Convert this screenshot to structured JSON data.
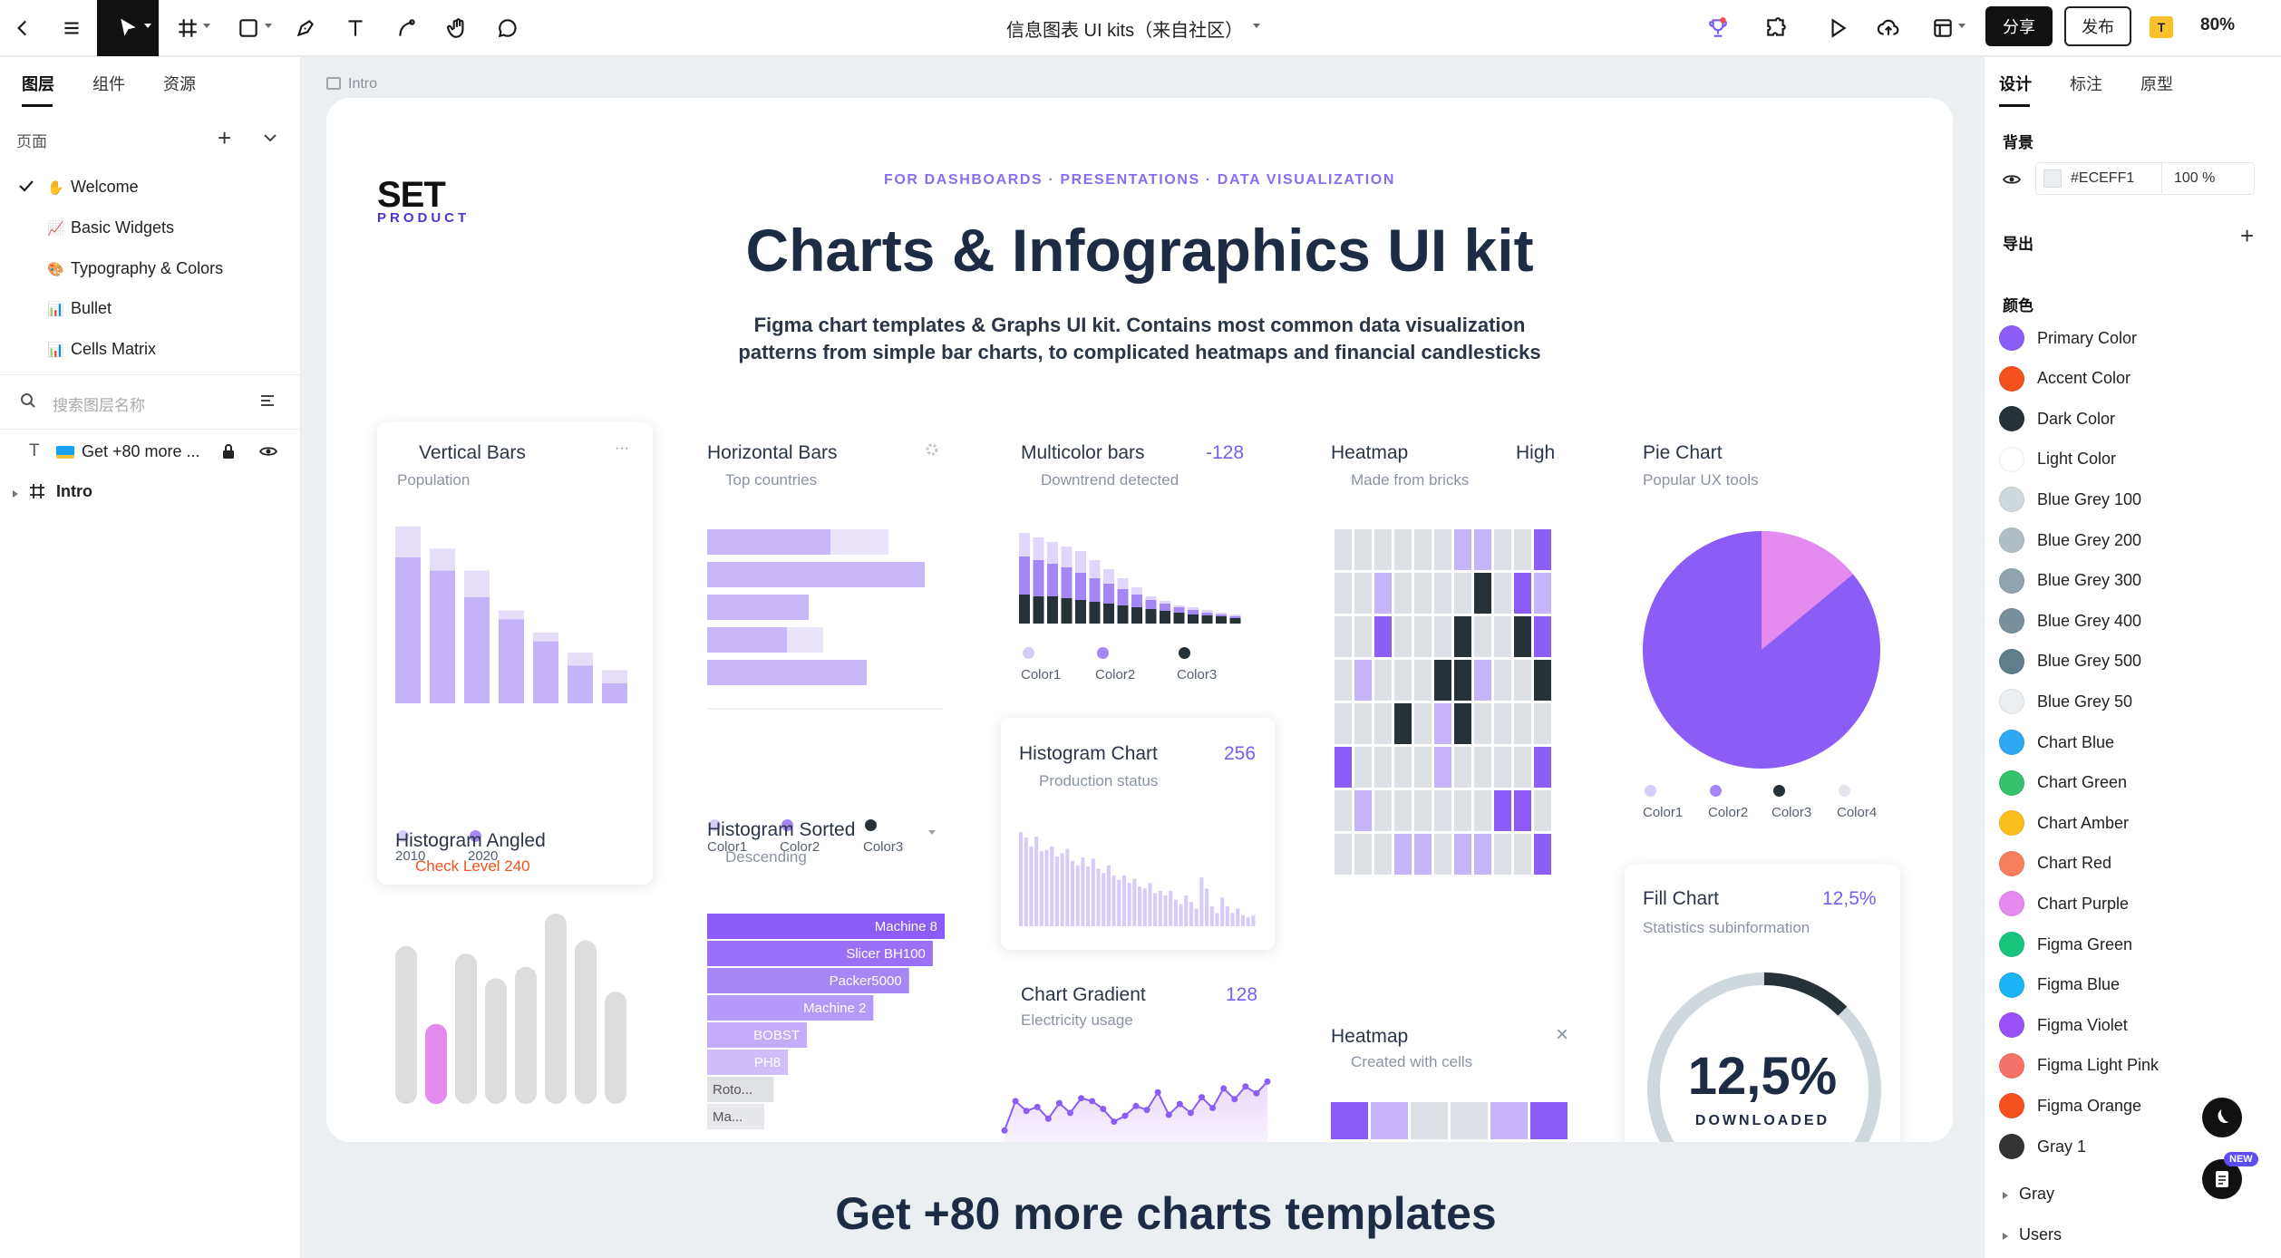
{
  "toolbar": {
    "title": "信息图表 UI kits（来自社区）",
    "share": "分享",
    "publish": "发布",
    "plugin_badge": "T",
    "zoom": "80%"
  },
  "left": {
    "tabs": [
      "图层",
      "组件",
      "资源"
    ],
    "pages_label": "页面",
    "pages": [
      {
        "emoji": "✋",
        "label": "Welcome",
        "active": true
      },
      {
        "emoji": "📈",
        "label": "Basic Widgets"
      },
      {
        "emoji": "🎨",
        "label": "Typography & Colors"
      },
      {
        "emoji": "📊",
        "label": "Bullet"
      },
      {
        "emoji": "📊",
        "label": "Cells Matrix"
      }
    ],
    "search_placeholder": "搜索图层名称",
    "layers": [
      {
        "label": "Get +80 more ..."
      },
      {
        "label": "Intro"
      }
    ]
  },
  "canvas": {
    "frame_label": "Intro",
    "logo_top": "SET",
    "logo_bottom": "PRODUCT",
    "kicker": "FOR DASHBOARDS · PRESENTATIONS · DATA VISUALIZATION",
    "headline": "Charts & Infographics UI kit",
    "sub1": "Figma chart templates & Graphs UI kit. Contains most common data visualization",
    "sub2": "patterns from simple bar charts, to complicated heatmaps and financial candlesticks",
    "cta": "Get +80 more charts templates"
  },
  "colors": {
    "accent": "#8B5CF6"
  },
  "cards": {
    "vbars": {
      "title": "Vertical Bars",
      "sub": "Population",
      "more": "···",
      "leg": [
        "2010",
        "2020"
      ]
    },
    "hbars": {
      "title": "Horizontal Bars",
      "sub": "Top countries",
      "leg": [
        "Color1",
        "Color2",
        "Color3"
      ]
    },
    "multi": {
      "title": "Multicolor bars",
      "value": "-128",
      "sub": "Downtrend detected",
      "leg": [
        "Color1",
        "Color2",
        "Color3"
      ]
    },
    "heat1": {
      "title": "Heatmap",
      "value": "High",
      "sub": "Made from bricks"
    },
    "pie": {
      "title": "Pie Chart",
      "sub": "Popular UX tools",
      "leg": [
        "Color1",
        "Color2",
        "Color3",
        "Color4"
      ]
    },
    "hangled": {
      "title": "Histogram Angled",
      "sub": "Check Level 240"
    },
    "hsorted": {
      "title": "Histogram Sorted",
      "sub": "Descending",
      "labels": [
        "Machine 8",
        "Slicer BH100",
        "Packer5000",
        "Machine 2",
        "BOBST",
        "PH8",
        "Roto...",
        "Ma..."
      ]
    },
    "histo": {
      "title": "Histogram Chart",
      "value": "256",
      "sub": "Production status"
    },
    "grad": {
      "title": "Chart Gradient",
      "value": "128",
      "sub": "Electricity usage"
    },
    "heat2": {
      "title": "Heatmap",
      "sub": "Created with cells",
      "close": "×"
    },
    "fill": {
      "title": "Fill Chart",
      "value": "12,5%",
      "sub": "Statistics subinformation",
      "big": "12,5%",
      "caption": "DOWNLOADED"
    }
  },
  "chart_data": [
    {
      "type": "bar",
      "title": "Vertical Bars",
      "series": [
        {
          "name": "2010",
          "values": [
            8,
            7,
            6,
            4.2,
            3.2,
            2.3,
            1.5
          ]
        },
        {
          "name": "2020",
          "values": [
            6.6,
            6,
            4.8,
            3.8,
            2.8,
            1.7,
            0.9
          ]
        }
      ]
    },
    {
      "type": "bar",
      "title": "Horizontal Bars",
      "series": [
        {
          "name": "Color1",
          "values": [
            5,
            5,
            2.5,
            3.2,
            3.6
          ]
        },
        {
          "name": "Color2",
          "values": [
            3.4,
            6,
            2.8,
            2.2,
            4.4
          ]
        }
      ]
    },
    {
      "type": "bar",
      "title": "Multicolor bars",
      "series": [
        {
          "name": "Color1",
          "values": [
            10,
            9.5,
            9,
            8.5,
            8,
            7,
            6,
            5,
            4,
            3,
            2.5,
            2,
            1.8,
            1.5,
            1.2,
            1
          ]
        },
        {
          "name": "Color2",
          "values": [
            7.4,
            7,
            6.6,
            6.2,
            5.6,
            5,
            4.4,
            3.8,
            3.2,
            2.6,
            2.2,
            1.8,
            1.5,
            1.2,
            1,
            0.8
          ]
        },
        {
          "name": "Color3",
          "values": [
            3.2,
            3,
            3,
            2.8,
            2.6,
            2.4,
            2.2,
            2,
            1.8,
            1.6,
            1.4,
            1.2,
            1,
            0.9,
            0.8,
            0.6
          ]
        }
      ]
    },
    {
      "type": "pie",
      "title": "Pie Chart",
      "slices": [
        {
          "name": "Color1",
          "value": 0
        },
        {
          "name": "Color2",
          "value": 86
        },
        {
          "name": "Color3",
          "value": 0
        },
        {
          "name": "Color4",
          "value": 14
        }
      ]
    },
    {
      "type": "bar",
      "title": "Histogram Angled",
      "values": [
        8.3,
        4.2,
        7.9,
        6.6,
        7.2,
        10,
        8.6,
        5.9
      ]
    },
    {
      "type": "bar",
      "title": "Histogram Sorted",
      "categories": [
        "Machine 8",
        "Slicer BH100",
        "Packer5000",
        "Machine 2",
        "BOBST",
        "PH8",
        "Roto...",
        "Ma..."
      ],
      "values": [
        100,
        95,
        85,
        70,
        42,
        34,
        28,
        24
      ]
    },
    {
      "type": "bar",
      "title": "Histogram Chart",
      "values": [
        8.5,
        8,
        7.2,
        8.1,
        6.8,
        6.9,
        7.2,
        6.3,
        6.6,
        7,
        5.9,
        5.5,
        6.2,
        5.4,
        6.1,
        5.2,
        4.8,
        5.5,
        4.6,
        4.2,
        4.6,
        3.9,
        4.3,
        3.6,
        3.4,
        3.9,
        3,
        3.2,
        2.8,
        3.2,
        2.4,
        2,
        2.8,
        2.2,
        1.6,
        4.4,
        3.4,
        1.8,
        1.2,
        2.6,
        1.8,
        1.2,
        1.6,
        1,
        0.8,
        1
      ]
    },
    {
      "type": "line",
      "title": "Chart Gradient",
      "values": [
        1,
        4,
        3,
        3.4,
        2.2,
        3.8,
        2.8,
        4.3,
        4,
        3.2,
        1.9,
        2.5,
        3.5,
        3.1,
        4.9,
        2.6,
        3.7,
        2.8,
        4.4,
        3.3,
        5.3,
        4.2,
        5.5,
        4.8,
        6
      ]
    },
    {
      "type": "pie",
      "title": "Fill Chart",
      "slices": [
        {
          "name": "filled",
          "value": 12.5
        },
        {
          "name": "rest",
          "value": 87.5
        }
      ]
    }
  ],
  "right": {
    "tabs": [
      "设计",
      "标注",
      "原型"
    ],
    "bg_label": "背景",
    "bg_hex": "#ECEFF1",
    "bg_opacity": "100 %",
    "export_label": "导出",
    "colors_label": "颜色",
    "colors": [
      {
        "name": "Primary Color",
        "hex": "#8B5CF6"
      },
      {
        "name": "Accent Color",
        "hex": "#F4511E"
      },
      {
        "name": "Dark Color",
        "hex": "#263238"
      },
      {
        "name": "Light Color",
        "hex": "#FFFFFF"
      },
      {
        "name": "Blue Grey 100",
        "hex": "#CFD8DC"
      },
      {
        "name": "Blue Grey 200",
        "hex": "#B0BEC5"
      },
      {
        "name": "Blue Grey 300",
        "hex": "#90A4AE"
      },
      {
        "name": "Blue Grey 400",
        "hex": "#78909C"
      },
      {
        "name": "Blue Grey 500",
        "hex": "#607D8B"
      },
      {
        "name": "Blue Grey 50",
        "hex": "#ECEFF1"
      },
      {
        "name": "Chart Blue",
        "hex": "#2EA8F0"
      },
      {
        "name": "Chart Green",
        "hex": "#34C26A"
      },
      {
        "name": "Chart Amber",
        "hex": "#F8BF1E"
      },
      {
        "name": "Chart Red",
        "hex": "#F6805E"
      },
      {
        "name": "Chart Purple",
        "hex": "#E58AEF"
      },
      {
        "name": "Figma Green",
        "hex": "#19C47C"
      },
      {
        "name": "Figma Blue",
        "hex": "#1BB4F7"
      },
      {
        "name": "Figma Violet",
        "hex": "#9A51F7"
      },
      {
        "name": "Figma Light Pink",
        "hex": "#F7726A"
      },
      {
        "name": "Figma Orange",
        "hex": "#F4511E"
      },
      {
        "name": "Gray 1",
        "hex": "#333333"
      }
    ],
    "groups": [
      "Gray",
      "Users"
    ],
    "new_badge": "NEW"
  }
}
